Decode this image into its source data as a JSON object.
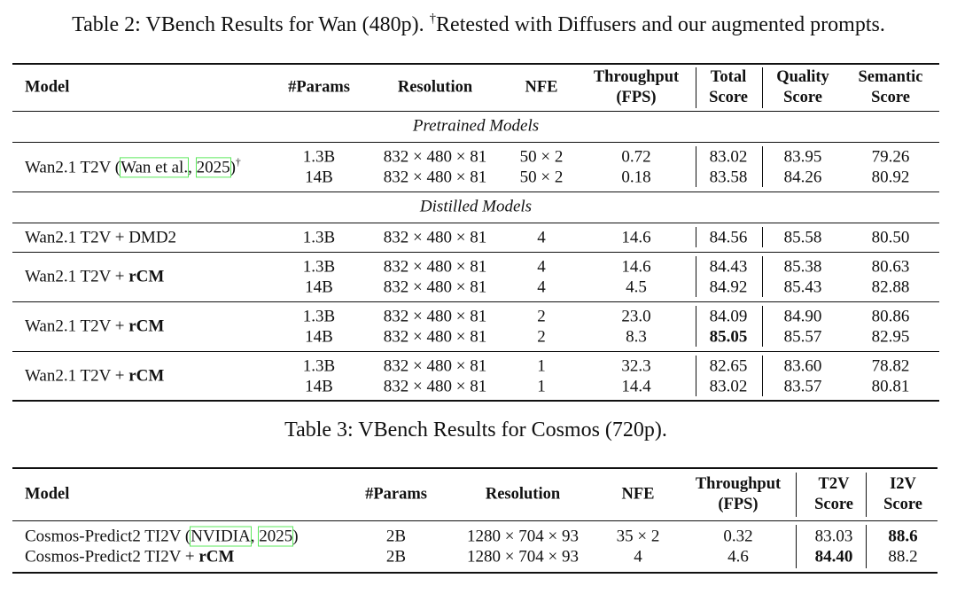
{
  "table2": {
    "caption": [
      {
        "text": "Table 2: VBench Results for Wan (480p). "
      },
      {
        "text": "†",
        "style": "sup"
      },
      {
        "text": "Retested with Diffusers and our augmented prompts."
      }
    ],
    "columns": [
      [
        "Model"
      ],
      [
        "#Params"
      ],
      [
        "Resolution"
      ],
      [
        "NFE"
      ],
      [
        "Throughput",
        "(FPS)"
      ],
      [
        "Total",
        "Score"
      ],
      [
        "Quality",
        "Score"
      ],
      [
        "Semantic",
        "Score"
      ]
    ],
    "sections": [
      {
        "title": "Pretrained Models",
        "groups": [
          {
            "model": [
              {
                "text": "Wan2.1 T2V ("
              },
              {
                "text": "Wan et al.",
                "style": "cite"
              },
              {
                "text": ", "
              },
              {
                "text": "2025",
                "style": "cite"
              },
              {
                "text": ")"
              },
              {
                "text": "†",
                "style": "sup"
              }
            ],
            "rows": [
              [
                "1.3B",
                "832 × 480 × 81",
                "50 × 2",
                "0.72",
                "83.02",
                "83.95",
                "79.26"
              ],
              [
                "14B",
                "832 × 480 × 81",
                "50 × 2",
                "0.18",
                "83.58",
                "84.26",
                "80.92"
              ]
            ]
          }
        ]
      },
      {
        "title": "Distilled Models",
        "groups": [
          {
            "model": [
              {
                "text": "Wan2.1 T2V + DMD2"
              }
            ],
            "rows": [
              [
                "1.3B",
                "832 × 480 × 81",
                "4",
                "14.6",
                "84.56",
                "85.58",
                "80.50"
              ]
            ]
          },
          {
            "model": [
              {
                "text": "Wan2.1 T2V + "
              },
              {
                "text": "rCM",
                "style": "bold"
              }
            ],
            "rows": [
              [
                "1.3B",
                "832 × 480 × 81",
                "4",
                "14.6",
                "84.43",
                "85.38",
                "80.63"
              ],
              [
                "14B",
                "832 × 480 × 81",
                "4",
                "4.5",
                "84.92",
                "85.43",
                "82.88"
              ]
            ]
          },
          {
            "model": [
              {
                "text": "Wan2.1 T2V + "
              },
              {
                "text": "rCM",
                "style": "bold"
              }
            ],
            "rows": [
              [
                "1.3B",
                "832 × 480 × 81",
                "2",
                "23.0",
                "84.09",
                "84.90",
                "80.86"
              ],
              [
                "14B",
                "832 × 480 × 81",
                "2",
                "8.3",
                {
                  "text": "85.05",
                  "bold": true
                },
                "85.57",
                "82.95"
              ]
            ]
          },
          {
            "model": [
              {
                "text": "Wan2.1 T2V + "
              },
              {
                "text": "rCM",
                "style": "bold"
              }
            ],
            "rows": [
              [
                "1.3B",
                "832 × 480 × 81",
                "1",
                "32.3",
                "82.65",
                "83.60",
                "78.82"
              ],
              [
                "14B",
                "832 × 480 × 81",
                "1",
                "14.4",
                "83.02",
                "83.57",
                "80.81"
              ]
            ]
          }
        ]
      }
    ]
  },
  "table3": {
    "caption": [
      {
        "text": "Table 3: VBench Results for Cosmos (720p)."
      }
    ],
    "columns": [
      [
        "Model"
      ],
      [
        "#Params"
      ],
      [
        "Resolution"
      ],
      [
        "NFE"
      ],
      [
        "Throughput",
        "(FPS)"
      ],
      [
        "T2V",
        "Score"
      ],
      [
        "I2V",
        "Score"
      ]
    ],
    "rows": [
      {
        "model": [
          {
            "text": "Cosmos-Predict2 TI2V ("
          },
          {
            "text": "NVIDIA",
            "style": "cite"
          },
          {
            "text": ", "
          },
          {
            "text": "2025",
            "style": "cite"
          },
          {
            "text": ")"
          }
        ],
        "cells": [
          "2B",
          "1280 × 704 × 93",
          "35 × 2",
          "0.32",
          "83.03",
          {
            "text": "88.6",
            "bold": true
          }
        ]
      },
      {
        "model": [
          {
            "text": "Cosmos-Predict2 TI2V + "
          },
          {
            "text": "rCM",
            "style": "bold"
          }
        ],
        "cells": [
          "2B",
          "1280 × 704 × 93",
          "4",
          "4.6",
          {
            "text": "84.40",
            "bold": true
          },
          "88.2"
        ]
      }
    ]
  }
}
